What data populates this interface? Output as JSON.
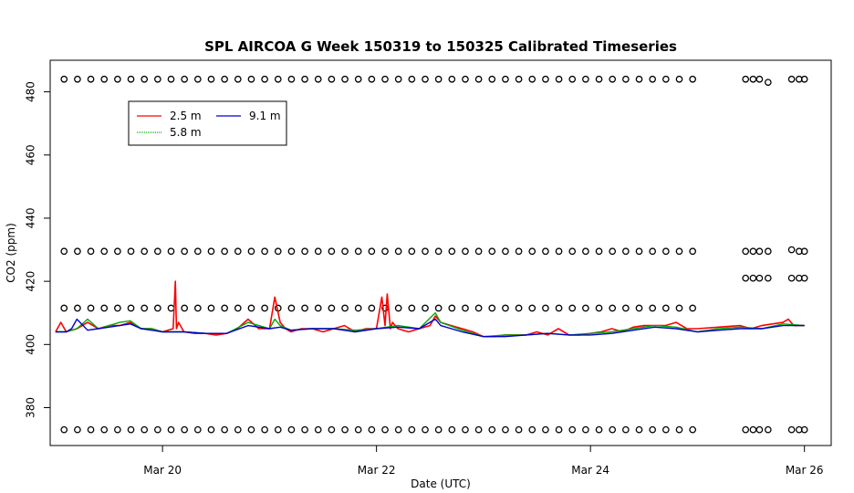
{
  "chart_data": {
    "type": "line",
    "title": "SPL AIRCOA G  Week 150319 to 150325  Calibrated Timeseries",
    "xlabel": "Date (UTC)",
    "ylabel": "CO2 (ppm)",
    "xlim": [
      18.95,
      26.25
    ],
    "ylim": [
      368,
      490
    ],
    "x_ticks": [
      {
        "value": 20,
        "label": "Mar 20"
      },
      {
        "value": 22,
        "label": "Mar 22"
      },
      {
        "value": 24,
        "label": "Mar 24"
      },
      {
        "value": 26,
        "label": "Mar 26"
      }
    ],
    "y_ticks": [
      380,
      400,
      420,
      440,
      460,
      480
    ],
    "legend": {
      "position": "top-left",
      "entries": [
        {
          "name": "2.5 m",
          "color": "#ff0000"
        },
        {
          "name": "5.8 m",
          "color": "#00aa00"
        },
        {
          "name": "9.1 m",
          "color": "#0000cc"
        }
      ]
    },
    "series": [
      {
        "name": "2.5 m",
        "color": "#ff0000",
        "x": [
          19.0,
          19.05,
          19.1,
          19.2,
          19.3,
          19.4,
          19.5,
          19.6,
          19.7,
          19.8,
          19.9,
          20.0,
          20.1,
          20.12,
          20.13,
          20.15,
          20.2,
          20.3,
          20.4,
          20.5,
          20.6,
          20.7,
          20.8,
          20.9,
          21.0,
          21.05,
          21.1,
          21.15,
          21.2,
          21.3,
          21.4,
          21.5,
          21.6,
          21.7,
          21.8,
          21.9,
          22.0,
          22.05,
          22.08,
          22.1,
          22.13,
          22.15,
          22.2,
          22.3,
          22.4,
          22.5,
          22.55,
          22.6,
          22.7,
          22.8,
          22.9,
          23.0,
          23.1,
          23.2,
          23.3,
          23.4,
          23.5,
          23.6,
          23.7,
          23.8,
          23.9,
          24.0,
          24.1,
          24.2,
          24.3,
          24.4,
          24.5,
          24.6,
          24.7,
          24.8,
          24.9,
          25.0,
          25.2,
          25.4,
          25.5,
          25.6,
          25.7,
          25.8,
          25.85,
          25.9,
          26.0
        ],
        "y": [
          404,
          407,
          404,
          405,
          407,
          405,
          406,
          406,
          407,
          405,
          405,
          404,
          405,
          420,
          405,
          407,
          404,
          403.5,
          403.5,
          403,
          403.5,
          405,
          408,
          405,
          405,
          415,
          407,
          405,
          404,
          405,
          405,
          404,
          405,
          406,
          404,
          405,
          405,
          415,
          406,
          416,
          405,
          407,
          405,
          404,
          405,
          406,
          409,
          407,
          406,
          405,
          404,
          402.5,
          402.5,
          403,
          403,
          403,
          404,
          403,
          405,
          403,
          403,
          403.5,
          404,
          405,
          404,
          405.5,
          406,
          406,
          406,
          407,
          405,
          405,
          405.5,
          406,
          405,
          406,
          406.5,
          407,
          408,
          406,
          406
        ]
      },
      {
        "name": "5.8 m",
        "color": "#00aa00",
        "x": [
          19.0,
          19.1,
          19.2,
          19.3,
          19.4,
          19.5,
          19.6,
          19.7,
          19.8,
          19.9,
          20.0,
          20.2,
          20.4,
          20.6,
          20.8,
          20.9,
          21.0,
          21.05,
          21.1,
          21.2,
          21.4,
          21.6,
          21.8,
          22.0,
          22.2,
          22.4,
          22.55,
          22.6,
          22.8,
          23.0,
          23.2,
          23.4,
          23.6,
          23.8,
          24.0,
          24.2,
          24.4,
          24.6,
          24.8,
          25.0,
          25.2,
          25.4,
          25.6,
          25.8,
          26.0
        ],
        "y": [
          404,
          404,
          405,
          408,
          405,
          406,
          407,
          407.5,
          405,
          405,
          404,
          404,
          403.5,
          403.5,
          407,
          406,
          405,
          408,
          406,
          404.5,
          405,
          405,
          404.5,
          405,
          406,
          405,
          410,
          407,
          404.5,
          402.5,
          403,
          403,
          403.5,
          403,
          403.5,
          404,
          405,
          406,
          405.5,
          404,
          405,
          405.5,
          405,
          406.5,
          406
        ]
      },
      {
        "name": "9.1 m",
        "color": "#0000cc",
        "x": [
          19.0,
          19.1,
          19.15,
          19.2,
          19.3,
          19.4,
          19.5,
          19.6,
          19.7,
          19.8,
          19.9,
          20.0,
          20.2,
          20.4,
          20.6,
          20.8,
          20.9,
          21.0,
          21.1,
          21.2,
          21.4,
          21.6,
          21.8,
          22.0,
          22.2,
          22.4,
          22.55,
          22.6,
          22.8,
          23.0,
          23.2,
          23.4,
          23.6,
          23.8,
          24.0,
          24.2,
          24.4,
          24.6,
          24.8,
          25.0,
          25.2,
          25.4,
          25.6,
          25.8,
          26.0
        ],
        "y": [
          404,
          404,
          405,
          408,
          404.5,
          405,
          405.5,
          406,
          406.5,
          405,
          404.5,
          404,
          404,
          403.5,
          403.5,
          406,
          405.5,
          405,
          405.5,
          404.5,
          405,
          405,
          404,
          405,
          405.5,
          405,
          408,
          406,
          404,
          402.5,
          402.5,
          403,
          403.5,
          403,
          403,
          403.5,
          404.5,
          405.5,
          405,
          404,
          404.5,
          405,
          405,
          406,
          406
        ]
      }
    ],
    "marker_rows": [
      {
        "y": 484,
        "x_start": 19.08,
        "x_end": 25.0,
        "step": 0.125,
        "extra_x": [
          25.45,
          25.52,
          25.58,
          25.66,
          25.88,
          25.95,
          26.0
        ],
        "extra_y": [
          484,
          484,
          484,
          483,
          484,
          484,
          484
        ]
      },
      {
        "y": 429.5,
        "x_start": 19.08,
        "x_end": 25.0,
        "step": 0.125,
        "extra_x": [
          25.45,
          25.52,
          25.58,
          25.66,
          25.88,
          25.95,
          26.0
        ],
        "extra_y": [
          429.5,
          429.5,
          429.5,
          429.5,
          430,
          429.5,
          429.5
        ]
      },
      {
        "y": 411.5,
        "x_start": 19.08,
        "x_end": 25.0,
        "step": 0.125,
        "extra_x": [
          25.45,
          25.52,
          25.58,
          25.66,
          25.88,
          25.95,
          26.0
        ],
        "extra_y": [
          421,
          421,
          421,
          421,
          421,
          421,
          421
        ]
      },
      {
        "y": 373,
        "x_start": 19.08,
        "x_end": 25.0,
        "step": 0.125,
        "extra_x": [
          25.45,
          25.52,
          25.58,
          25.66,
          25.88,
          25.95,
          26.0
        ],
        "extra_y": [
          373,
          373,
          373,
          373,
          373,
          373,
          373
        ]
      }
    ]
  }
}
